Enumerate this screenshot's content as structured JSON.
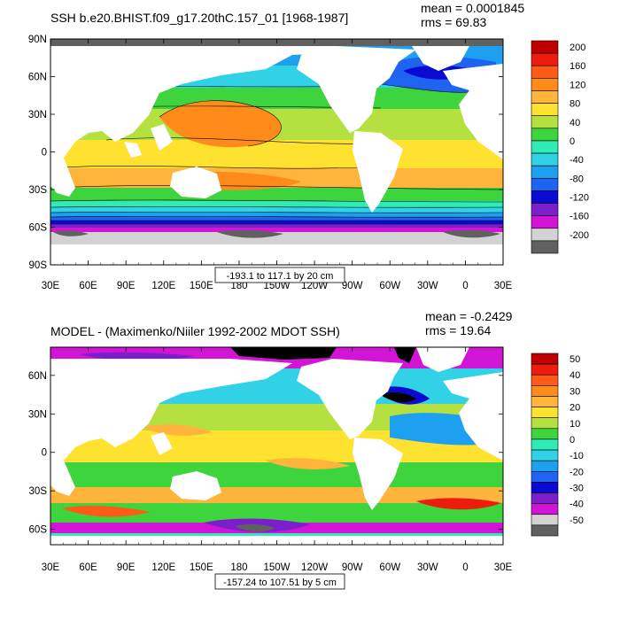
{
  "chart_data": [
    {
      "type": "heatmap",
      "title": "SSH b.e20.BHIST.f09_g17.20thC.157_01 [1968-1987]",
      "stats": {
        "mean": "mean = 0.0001845",
        "rms": "rms = 69.83"
      },
      "range_label": "-193.1 to 117.1 by 20 cm",
      "x_ticks": [
        "30E",
        "60E",
        "90E",
        "120E",
        "150E",
        "180",
        "150W",
        "120W",
        "90W",
        "60W",
        "30W",
        "0",
        "30E"
      ],
      "y_ticks": [
        "90N",
        "60N",
        "30N",
        "0",
        "30S",
        "60S",
        "90S"
      ],
      "xlim": [
        30,
        390
      ],
      "ylim": [
        -90,
        90
      ],
      "colorbar": {
        "labels": [
          "200",
          "160",
          "120",
          "80",
          "40",
          "0",
          "-40",
          "-80",
          "-120",
          "-160",
          "-200"
        ],
        "colors": [
          "#bf0000",
          "#ee1c0f",
          "#ff5a17",
          "#ff8c1a",
          "#ffb43c",
          "#ffe130",
          "#b4e140",
          "#3ed43e",
          "#30ebb5",
          "#31d2e6",
          "#1ea0f0",
          "#1f64f0",
          "#0a0ad2",
          "#7d1ecd",
          "#d214d7",
          "#d2d2d2",
          "#606060"
        ]
      }
    },
    {
      "type": "heatmap",
      "title": "MODEL - (Maximenko/Niiler 1992-2002 MDOT SSH)",
      "stats": {
        "mean": "mean = -0.2429",
        "rms": "rms = 19.64"
      },
      "range_label": "-157.24 to 107.51 by 5 cm",
      "x_ticks": [
        "30E",
        "60E",
        "90E",
        "120E",
        "150E",
        "180",
        "150W",
        "120W",
        "90W",
        "60W",
        "30W",
        "0",
        "30E"
      ],
      "y_ticks": [
        "60N",
        "30N",
        "0",
        "30S",
        "60S"
      ],
      "xlim": [
        30,
        390
      ],
      "ylim": [
        -72,
        82
      ],
      "colorbar": {
        "labels": [
          "50",
          "40",
          "30",
          "20",
          "10",
          "0",
          "-10",
          "-20",
          "-30",
          "-40",
          "-50"
        ],
        "colors": [
          "#bf0000",
          "#ee1c0f",
          "#ff5a17",
          "#ff8c1a",
          "#ffb43c",
          "#ffe130",
          "#b4e140",
          "#3ed43e",
          "#30ebb5",
          "#31d2e6",
          "#1ea0f0",
          "#1f64f0",
          "#0a0ad2",
          "#7d1ecd",
          "#d214d7",
          "#d2d2d2",
          "#606060"
        ]
      }
    }
  ]
}
